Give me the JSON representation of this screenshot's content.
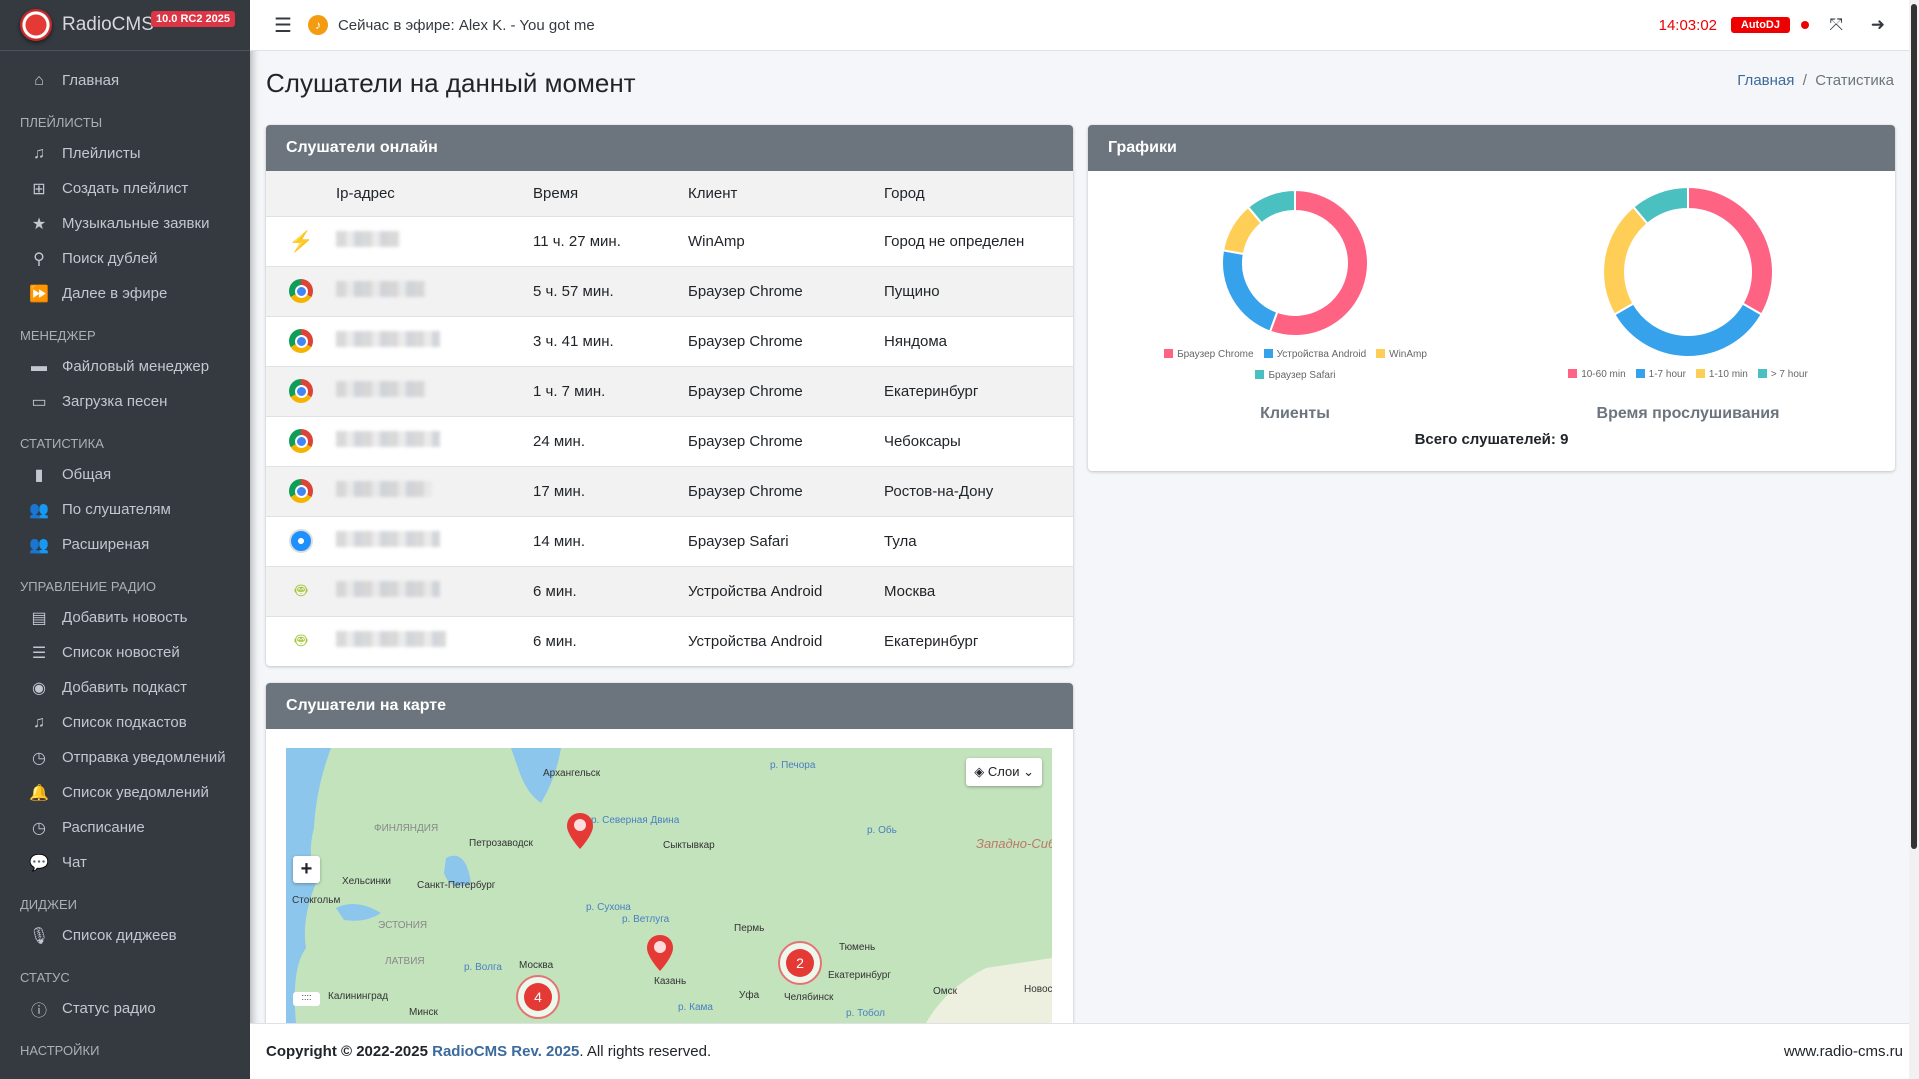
{
  "brand": {
    "name": "RadioCMS",
    "version": "10.0 RC2 2025"
  },
  "sidebar": {
    "home": "Главная",
    "sections": [
      {
        "title": "ПЛЕЙЛИСТЫ",
        "items": [
          {
            "label": "Плейлисты",
            "icon": "music-icon"
          },
          {
            "label": "Создать плейлист",
            "icon": "plus-square-icon"
          },
          {
            "label": "Музыкальные заявки",
            "icon": "star-icon"
          },
          {
            "label": "Поиск дублей",
            "icon": "search-icon"
          },
          {
            "label": "Далее в эфире",
            "icon": "forward-icon"
          }
        ]
      },
      {
        "title": "МЕНЕДЖЕР",
        "items": [
          {
            "label": "Файловый менеджер",
            "icon": "folder-icon"
          },
          {
            "label": "Загрузка песен",
            "icon": "folder-open-icon"
          }
        ]
      },
      {
        "title": "СТАТИСТИКА",
        "items": [
          {
            "label": "Общая",
            "icon": "signal-icon"
          },
          {
            "label": "По слушателям",
            "icon": "users-icon"
          },
          {
            "label": "Расширеная",
            "icon": "users-icon"
          }
        ]
      },
      {
        "title": "УПРАВЛЕНИЕ РАДИО",
        "items": [
          {
            "label": "Добавить новость",
            "icon": "newspaper-icon"
          },
          {
            "label": "Список новостей",
            "icon": "list-icon"
          },
          {
            "label": "Добавить подкаст",
            "icon": "podcast-icon"
          },
          {
            "label": "Список подкастов",
            "icon": "music-icon"
          },
          {
            "label": "Отправка уведомлений",
            "icon": "clock-icon"
          },
          {
            "label": "Список уведомлений",
            "icon": "bell-icon"
          },
          {
            "label": "Расписание",
            "icon": "clock-icon"
          },
          {
            "label": "Чат",
            "icon": "comments-icon"
          }
        ]
      },
      {
        "title": "ДИДЖЕИ",
        "items": [
          {
            "label": "Список диджеев",
            "icon": "microphone-icon"
          }
        ]
      },
      {
        "title": "СТАТУС",
        "items": [
          {
            "label": "Статус радио",
            "icon": "info-icon"
          }
        ]
      },
      {
        "title": "НАСТРОЙКИ",
        "items": []
      }
    ]
  },
  "topbar": {
    "now_playing": "Сейчас в эфире: Alex K. - You got me",
    "clock": "14:03:02",
    "autodj": "AutoDJ"
  },
  "page": {
    "title": "Слушатели на данный момент",
    "breadcrumb": [
      "Главная",
      "Статистика"
    ]
  },
  "listeners": {
    "title": "Слушатели онлайн",
    "columns": [
      "Ip-адрес",
      "Время",
      "Клиент",
      "Город"
    ],
    "rows": [
      {
        "icon": "winamp",
        "time": "11 ч. 27 мин.",
        "client": "WinAmp",
        "city": "Город не определен"
      },
      {
        "icon": "chrome",
        "time": "5 ч. 57 мин.",
        "client": "Браузер Chrome",
        "city": "Пущино"
      },
      {
        "icon": "chrome",
        "time": "3 ч. 41 мин.",
        "client": "Браузер Chrome",
        "city": "Няндома"
      },
      {
        "icon": "chrome",
        "time": "1 ч. 7 мин.",
        "client": "Браузер Chrome",
        "city": "Екатеринбург"
      },
      {
        "icon": "chrome",
        "time": "24 мин.",
        "client": "Браузер Chrome",
        "city": "Чебоксары"
      },
      {
        "icon": "chrome",
        "time": "17 мин.",
        "client": "Браузер Chrome",
        "city": "Ростов-на-Дону"
      },
      {
        "icon": "safari",
        "time": "14 мин.",
        "client": "Браузер Safari",
        "city": "Тула"
      },
      {
        "icon": "android",
        "time": "6 мин.",
        "client": "Устройства Android",
        "city": "Москва"
      },
      {
        "icon": "android",
        "time": "6 мин.",
        "client": "Устройства Android",
        "city": "Екатеринбург"
      }
    ]
  },
  "map": {
    "title": "Слушатели на карте",
    "layers_label": "Слои",
    "zoom_in": "+",
    "clusters": [
      "4",
      "2"
    ],
    "labels": [
      "Архангельск",
      "Петрозаводск",
      "Сыктывкар",
      "Хельсинки",
      "Санкт-Петербург",
      "Стокгольм",
      "ФИНЛЯНДИЯ",
      "ЭСТОНИЯ",
      "ЛАТВИЯ",
      "Москва",
      "Минск",
      "Калининград",
      "Казань",
      "Пермь",
      "Екатеринбург",
      "Тюмень",
      "Челябинск",
      "Уфа",
      "Омск",
      "Новосибирск",
      "Западно-Сибирская равнина",
      "р. Северная Двина",
      "р. Сухона",
      "р. Ветлуга",
      "р. Волга",
      "р. Кама",
      "р. Печора",
      "р. Обь",
      "р. Тобол"
    ]
  },
  "charts_card": {
    "title": "Графики",
    "total": "Всего слушателей: 9"
  },
  "chart_data": [
    {
      "type": "pie",
      "title": "Клиенты",
      "categories": [
        "Браузер Chrome",
        "Устройства Android",
        "WinAmp",
        "Браузер Safari"
      ],
      "values": [
        5,
        2,
        1,
        1
      ],
      "colors": [
        "#ff6384",
        "#36a2eb",
        "#ffce56",
        "#4bc0c0"
      ]
    },
    {
      "type": "pie",
      "title": "Время прослушивания",
      "categories": [
        "10-60 min",
        "1-7 hour",
        "1-10 min",
        "> 7 hour"
      ],
      "values": [
        3,
        3,
        2,
        1
      ],
      "colors": [
        "#ff6384",
        "#36a2eb",
        "#ffce56",
        "#4bc0c0"
      ]
    }
  ],
  "footer": {
    "copyright": "Copyright © 2022-2025",
    "product": "RadioCMS Rev. 2025",
    "rights": ". All rights reserved.",
    "site": "www.radio-cms.ru"
  }
}
